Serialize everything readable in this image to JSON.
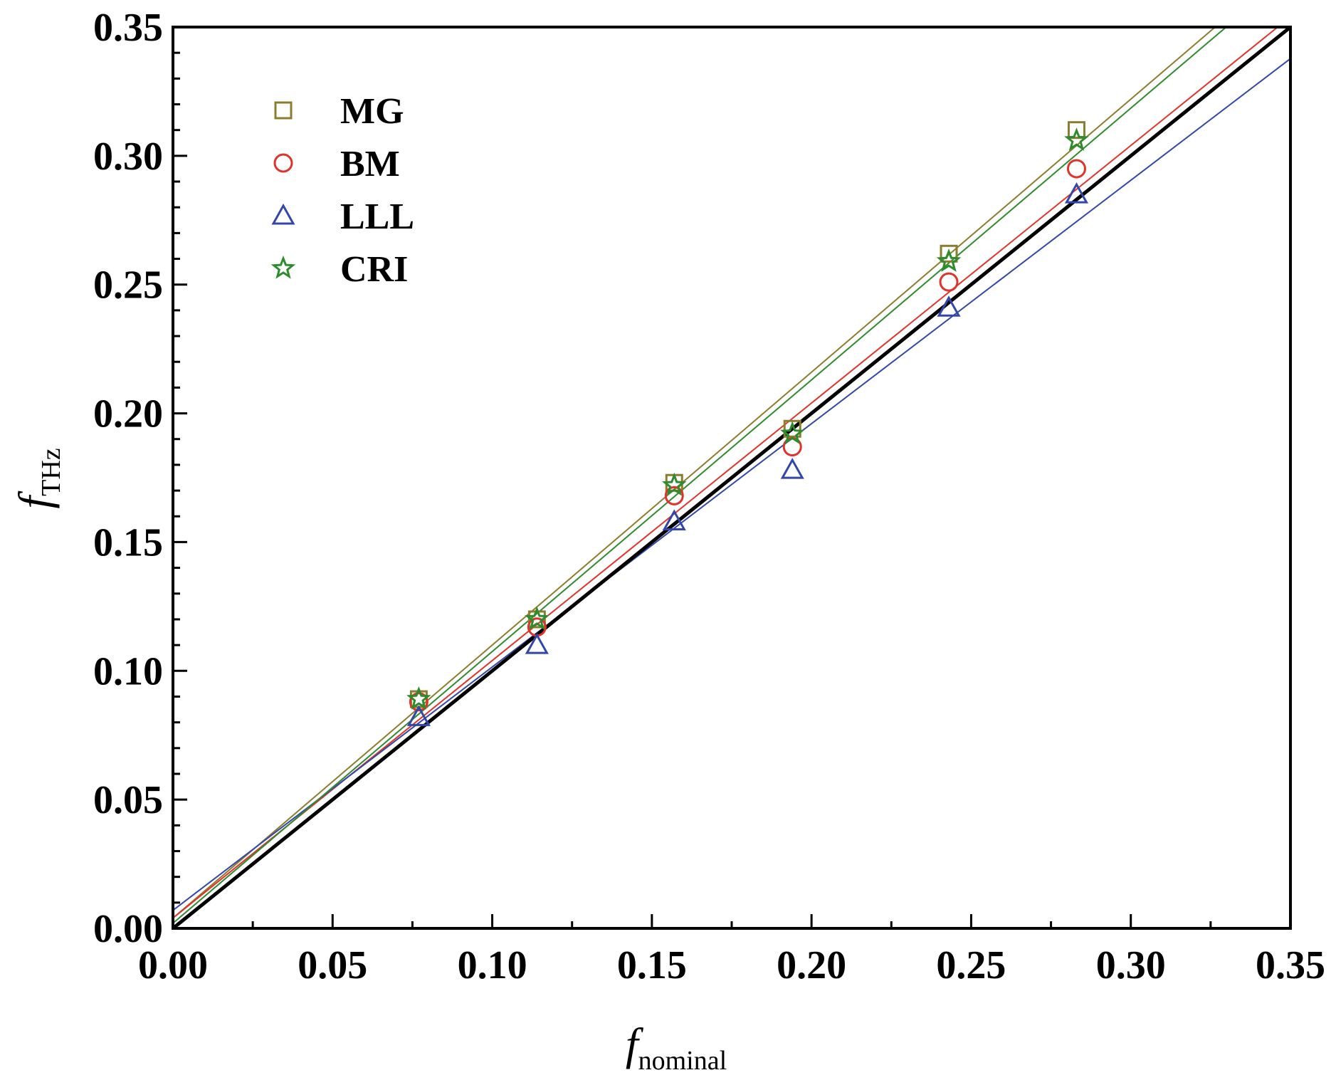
{
  "chart_data": {
    "type": "scatter",
    "title": "",
    "xlabel": {
      "main": "f",
      "sub": "nominal"
    },
    "ylabel": {
      "main": "f",
      "sub": "THz"
    },
    "xlim": [
      0,
      0.35
    ],
    "ylim": [
      0,
      0.35
    ],
    "x_ticks": [
      "0.00",
      "0.05",
      "0.10",
      "0.15",
      "0.20",
      "0.25",
      "0.30",
      "0.35"
    ],
    "y_ticks": [
      "0.00",
      "0.05",
      "0.10",
      "0.15",
      "0.20",
      "0.25",
      "0.30",
      "0.35"
    ],
    "grid": false,
    "legend_position": "top-left",
    "x": [
      0.077,
      0.114,
      0.157,
      0.194,
      0.243,
      0.283
    ],
    "series": [
      {
        "name": "MG",
        "marker": "square",
        "color": "#8b7d2e",
        "values": [
          0.089,
          0.12,
          0.173,
          0.194,
          0.262,
          0.31
        ],
        "fit": {
          "slope": 1.06,
          "intercept": 0.004
        }
      },
      {
        "name": "BM",
        "marker": "circle",
        "color": "#e0332b",
        "values": [
          0.088,
          0.117,
          0.168,
          0.187,
          0.251,
          0.295
        ],
        "fit": {
          "slope": 1.0,
          "intercept": 0.004
        }
      },
      {
        "name": "LLL",
        "marker": "triangle",
        "color": "#3347a8",
        "values": [
          0.082,
          0.11,
          0.158,
          0.178,
          0.241,
          0.285
        ],
        "fit": {
          "slope": 0.945,
          "intercept": 0.007
        }
      },
      {
        "name": "CRI",
        "marker": "star",
        "color": "#2e8b2e",
        "values": [
          0.089,
          0.12,
          0.172,
          0.192,
          0.259,
          0.306
        ],
        "fit": {
          "slope": 1.055,
          "intercept": 0.002
        }
      }
    ],
    "reference_line": {
      "name": "y = x",
      "color": "#000000",
      "slope": 1.0,
      "intercept": 0.0
    }
  }
}
